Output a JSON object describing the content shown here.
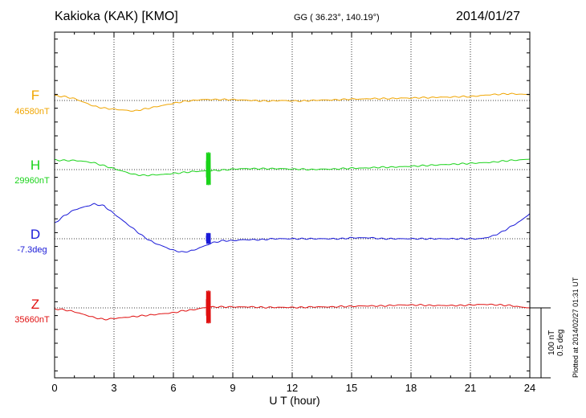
{
  "header": {
    "title": "Kakioka (KAK)  [KMO]",
    "coords": "GG ( 36.23°, 140.19°)",
    "date": "2014/01/27",
    "plotted": "Plotted at 2014/02/27 01:31  UT",
    "scale_line1": "100 nT",
    "scale_line2": "0.5 deg"
  },
  "chart_data": {
    "type": "line",
    "title": "Kakioka (KAK)  [KMO]",
    "xlabel": "U T (hour)",
    "ylabel": "",
    "xlim": [
      0,
      24
    ],
    "xticks": [
      "0",
      "3",
      "6",
      "9",
      "12",
      "15",
      "18",
      "21",
      "24"
    ],
    "grid": true,
    "scale_bar": "100 nT / 0.5 deg",
    "x": [
      0,
      0.5,
      1,
      1.5,
      2,
      2.5,
      3,
      3.5,
      4,
      4.5,
      5,
      5.5,
      6,
      6.5,
      7,
      7.5,
      8,
      8.5,
      9,
      9.5,
      10,
      10.5,
      11,
      11.5,
      12,
      12.5,
      13,
      13.5,
      14,
      14.5,
      15,
      15.5,
      16,
      16.5,
      17,
      17.5,
      18,
      18.5,
      19,
      19.5,
      20,
      20.5,
      21,
      21.5,
      22,
      22.5,
      23,
      23.5,
      24
    ],
    "series": [
      {
        "name": "F",
        "baseline": "46580nT",
        "unit": "nT",
        "color": "#f0a500",
        "values": [
          10,
          8,
          4,
          -4,
          -12,
          -16,
          -18,
          -20,
          -22,
          -18,
          -14,
          -10,
          -6,
          -2,
          0,
          2,
          2,
          2,
          2,
          1,
          0,
          -1,
          -1,
          0,
          -1,
          -1,
          0,
          1,
          1,
          2,
          3,
          3,
          4,
          4,
          4,
          5,
          5,
          6,
          6,
          7,
          7,
          8,
          8,
          10,
          12,
          13,
          14,
          13,
          12
        ]
      },
      {
        "name": "H",
        "baseline": "29960nT",
        "unit": "nT",
        "color": "#19d319",
        "values": [
          20,
          19,
          19,
          17,
          14,
          8,
          2,
          -4,
          -10,
          -12,
          -11,
          -10,
          -8,
          -6,
          -4,
          -3,
          -2,
          -1,
          1,
          2,
          2,
          2,
          2,
          2,
          1,
          1,
          0,
          1,
          1,
          2,
          3,
          3,
          4,
          5,
          5,
          6,
          7,
          8,
          9,
          10,
          11,
          12,
          13,
          14,
          15,
          17,
          19,
          20,
          22
        ]
      },
      {
        "name": "D",
        "baseline": "-7.3deg",
        "unit": "deg",
        "color": "#1a1ad8",
        "values": [
          0.16,
          0.24,
          0.3,
          0.33,
          0.36,
          0.34,
          0.26,
          0.18,
          0.1,
          0.02,
          -0.04,
          -0.08,
          -0.12,
          -0.14,
          -0.12,
          -0.08,
          -0.04,
          -0.02,
          -0.02,
          -0.01,
          -0.01,
          -0.01,
          0,
          0,
          0,
          0,
          0,
          0,
          0,
          0,
          0.01,
          0.01,
          0.01,
          0,
          0,
          0,
          0,
          0,
          0,
          0,
          0,
          0,
          0,
          0,
          0.02,
          0.06,
          0.12,
          0.18,
          0.26
        ]
      },
      {
        "name": "Z",
        "baseline": "35660nT",
        "unit": "nT",
        "color": "#e01010",
        "values": [
          -2,
          -4,
          -8,
          -14,
          -20,
          -24,
          -22,
          -20,
          -18,
          -16,
          -14,
          -12,
          -10,
          -6,
          -4,
          0,
          2,
          2,
          2,
          2,
          2,
          1,
          1,
          1,
          1,
          1,
          2,
          2,
          2,
          3,
          3,
          4,
          4,
          4,
          5,
          6,
          6,
          6,
          5,
          5,
          5,
          5,
          6,
          7,
          7,
          6,
          5,
          2,
          0
        ]
      }
    ],
    "disturbance": {
      "time": 7.75,
      "amplitudes": {
        "F": 0,
        "H": 36,
        "D": 0.06,
        "Z": 36
      }
    }
  }
}
